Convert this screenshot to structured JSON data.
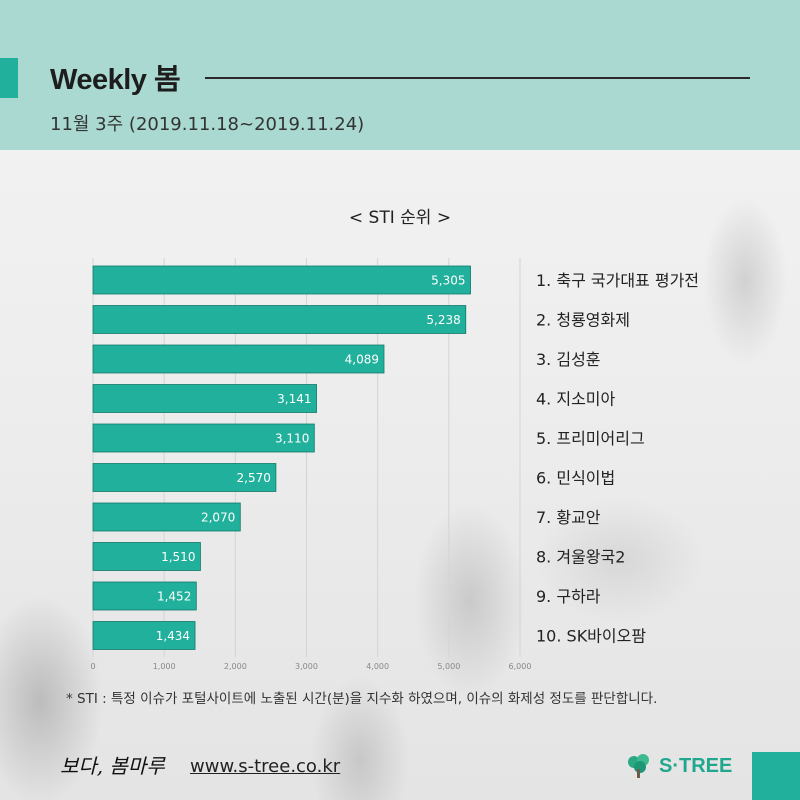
{
  "header": {
    "title": "Weekly 봄",
    "subtitle": "11월 3주 (2019.11.18~2019.11.24)"
  },
  "colors": {
    "header_bg": "#a9d9d1",
    "accent": "#20b09b",
    "bar": "#20b09b"
  },
  "chart_data": {
    "type": "bar",
    "orientation": "horizontal",
    "title": "< STI 순위 >",
    "categories": [
      "1. 축구 국가대표 평가전",
      "2. 청룡영화제",
      "3. 김성훈",
      "4. 지소미아",
      "5. 프리미어리그",
      "6. 민식이법",
      "7. 황교안",
      "8. 겨울왕국2",
      "9. 구하라",
      "10. SK바이오팜"
    ],
    "values": [
      5305,
      5238,
      4089,
      3141,
      3110,
      2570,
      2070,
      1510,
      1452,
      1434
    ],
    "value_labels": [
      "5,305",
      "5,238",
      "4,089",
      "3,141",
      "3,110",
      "2,570",
      "2,070",
      "1,510",
      "1,452",
      "1,434"
    ],
    "xlim": [
      0,
      6000
    ],
    "xticks": [
      "0",
      "1,000",
      "2,000",
      "3,000",
      "4,000",
      "5,000",
      "6,000"
    ],
    "grid": true
  },
  "footnote": "* STI : 특정 이슈가 포털사이트에 노출된 시간(분)을 지수화 하였으며, 이슈의 화제성 정도를 판단합니다.",
  "footer": {
    "script_logo": "보다, 봄마루",
    "url": "www.s-tree.co.kr",
    "brand": "S·TREE",
    "brand_icon": "tree-icon"
  }
}
